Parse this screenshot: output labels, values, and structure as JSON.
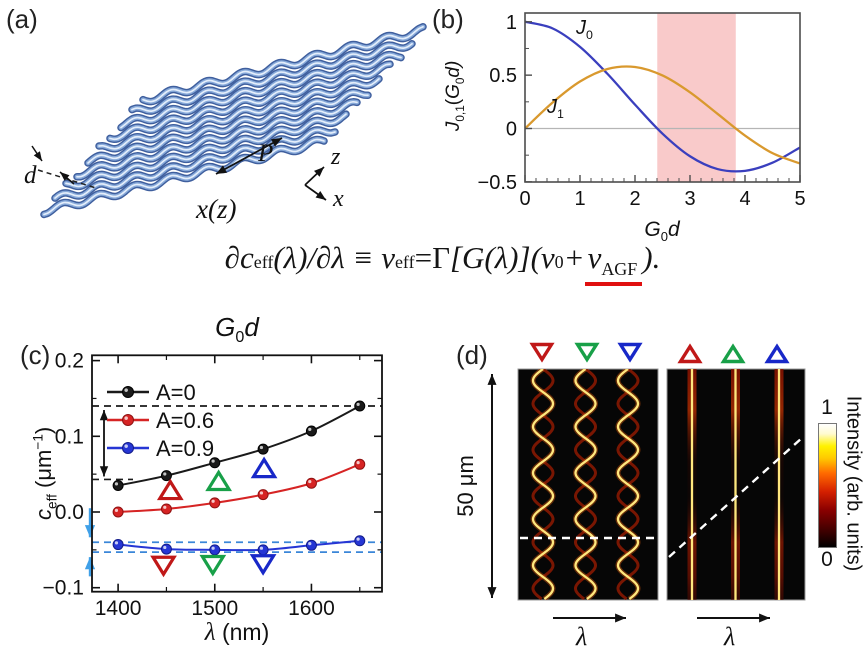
{
  "figure_labels": {
    "a": "(a)",
    "b": "(b)",
    "c": "(c)",
    "d": "(d)"
  },
  "panel_a": {
    "gap_label": "d",
    "period_label": "P",
    "profile_label": "x(z)",
    "axis_z": "z",
    "axis_x": "x",
    "tube_color": "#5b7fbe"
  },
  "panel_b": {
    "curve0_base": "J",
    "curve0_sub": "0",
    "curve1_base": "J",
    "curve1_sub": "1",
    "ylabel_j": "J",
    "ylabel_jsub": "0,1",
    "ylabel_open": "(",
    "ylabel_g": "G",
    "ylabel_gsub": "0",
    "ylabel_end": "d)",
    "xlabel_g": "G",
    "xlabel_gsub": "0",
    "xlabel_end": "d"
  },
  "equation": {
    "part1": "∂c",
    "sub1": "eff",
    "part2": "(λ)/∂λ ≡ ν",
    "sub2": "eff",
    "part3a": " = ",
    "gamma": "Γ",
    "part3b": "[G(λ)](ν",
    "sub3": "0",
    "part4": " + ",
    "nu": "ν",
    "sub4": "AGF",
    "part5": ").",
    "underline_color": "#e01010"
  },
  "panel_c": {
    "title_g": "G",
    "title_gsub": "0",
    "title_end": "d",
    "ylabel_c": "c",
    "ylabel_csub": "eff",
    "ylabel_unit": " (μm",
    "ylabel_sup": "−1",
    "ylabel_close": ")",
    "xlabel_lambda": "λ",
    "xlabel_unit": " (nm)",
    "legend": [
      {
        "label": "A=0",
        "color": "#1a1a1a",
        "edge": "#000000"
      },
      {
        "label": "A=0.6",
        "color": "#d62424",
        "edge": "#8f1212"
      },
      {
        "label": "A=0.9",
        "color": "#2636d4",
        "edge": "#131c8a"
      }
    ]
  },
  "panel_d": {
    "scale_label": "50 μm",
    "lambda_left": "λ",
    "lambda_right": "λ",
    "colorbar_label": "Intensity (arb. units)",
    "colorbar_max": "1",
    "colorbar_min": "0"
  },
  "chart_data": [
    {
      "id": "panel_b_bessel",
      "type": "line",
      "title": "",
      "xlabel": "G0d",
      "ylabel": "J0,1(G0d)",
      "xlim": [
        0,
        5
      ],
      "ylim": [
        -0.5,
        1
      ],
      "xticks": [
        0,
        1,
        2,
        3,
        4,
        5
      ],
      "yticks": [
        1,
        0.5,
        0,
        -0.5
      ],
      "x": [
        0,
        0.5,
        1,
        1.5,
        2,
        2.5,
        3,
        3.5,
        4,
        4.5,
        5
      ],
      "series": [
        {
          "name": "J0",
          "color": "#3a3fbe",
          "values": [
            1.0,
            0.9385,
            0.7652,
            0.5118,
            0.2239,
            -0.0484,
            -0.2601,
            -0.3801,
            -0.3971,
            -0.3205,
            -0.1776
          ]
        },
        {
          "name": "J1",
          "color": "#d9992e",
          "values": [
            0.0,
            0.2423,
            0.4401,
            0.5579,
            0.5767,
            0.4971,
            0.3391,
            0.1374,
            -0.066,
            -0.2311,
            -0.3276
          ]
        }
      ],
      "shaded_band": {
        "from": 2.405,
        "to": 3.832,
        "color": "#f9caca"
      },
      "zero_line": true,
      "grid": false,
      "legend_position": "labels-on-curves"
    },
    {
      "id": "panel_c_ceff",
      "type": "line",
      "title": "G0d",
      "xlabel": "λ (nm)",
      "ylabel": "c_eff (μm−1)",
      "xlim": [
        1373,
        1673
      ],
      "ylim": [
        -0.105,
        0.207
      ],
      "xticks": [
        1400,
        1500,
        1600
      ],
      "xticks_minor": [
        1450,
        1550,
        1650
      ],
      "yticks": [
        0.2,
        0.1,
        0.0,
        -0.1
      ],
      "x": [
        1400,
        1450,
        1500,
        1550,
        1600,
        1650
      ],
      "series": [
        {
          "name": "A=0",
          "color": "#1a1a1a",
          "edge": "#000000",
          "values": [
            0.035,
            0.048,
            0.065,
            0.083,
            0.107,
            0.14
          ]
        },
        {
          "name": "A=0.6",
          "color": "#d62424",
          "edge": "#8f1212",
          "values": [
            0.0,
            0.004,
            0.012,
            0.023,
            0.038,
            0.063
          ]
        },
        {
          "name": "A=0.9",
          "color": "#2636d4",
          "edge": "#131c8a",
          "values": [
            -0.043,
            -0.049,
            -0.05,
            -0.05,
            -0.044,
            -0.038
          ]
        }
      ],
      "dashed_lines": [
        {
          "y": 0.14,
          "color": "#1a1a1a",
          "full": true
        },
        {
          "y": 0.043,
          "color": "#1a1a1a",
          "full": false
        },
        {
          "y": -0.04,
          "color": "#3a86d8",
          "full": true
        },
        {
          "y": -0.053,
          "color": "#3a86d8",
          "full": true
        }
      ],
      "triangles_up": [
        {
          "x": 1454,
          "y": 0.029,
          "color": "#c01818"
        },
        {
          "x": 1504,
          "y": 0.041,
          "color": "#18a048"
        },
        {
          "x": 1551,
          "y": 0.058,
          "color": "#1828c8"
        }
      ],
      "triangles_down": [
        {
          "x": 1447,
          "y": -0.071,
          "color": "#c01818"
        },
        {
          "x": 1498,
          "y": -0.07,
          "color": "#18a048"
        },
        {
          "x": 1550,
          "y": -0.069,
          "color": "#1828c8"
        }
      ],
      "grid": false,
      "legend_position": "upper-left-inside"
    },
    {
      "id": "panel_d_maps",
      "type": "heatmap",
      "maps": [
        {
          "name": "wavy-trajectories",
          "traces": 3,
          "trace_shape": "sinusoidal",
          "periods": 5,
          "marker": "down-triangles",
          "marker_colors": [
            "#c01818",
            "#18a048",
            "#1828c8"
          ],
          "dashed_guide": "horizontal"
        },
        {
          "name": "straight-trajectories",
          "traces": 3,
          "trace_shape": "vertical-line",
          "marker": "up-triangles",
          "marker_colors": [
            "#c01818",
            "#18a048",
            "#1828c8"
          ],
          "dashed_guide": "diagonal"
        }
      ],
      "y_extent_label": "50 μm",
      "x_axis_label": "λ",
      "colorbar": {
        "label": "Intensity (arb. units)",
        "min": 0,
        "max": 1,
        "colormap": "hot"
      }
    }
  ]
}
